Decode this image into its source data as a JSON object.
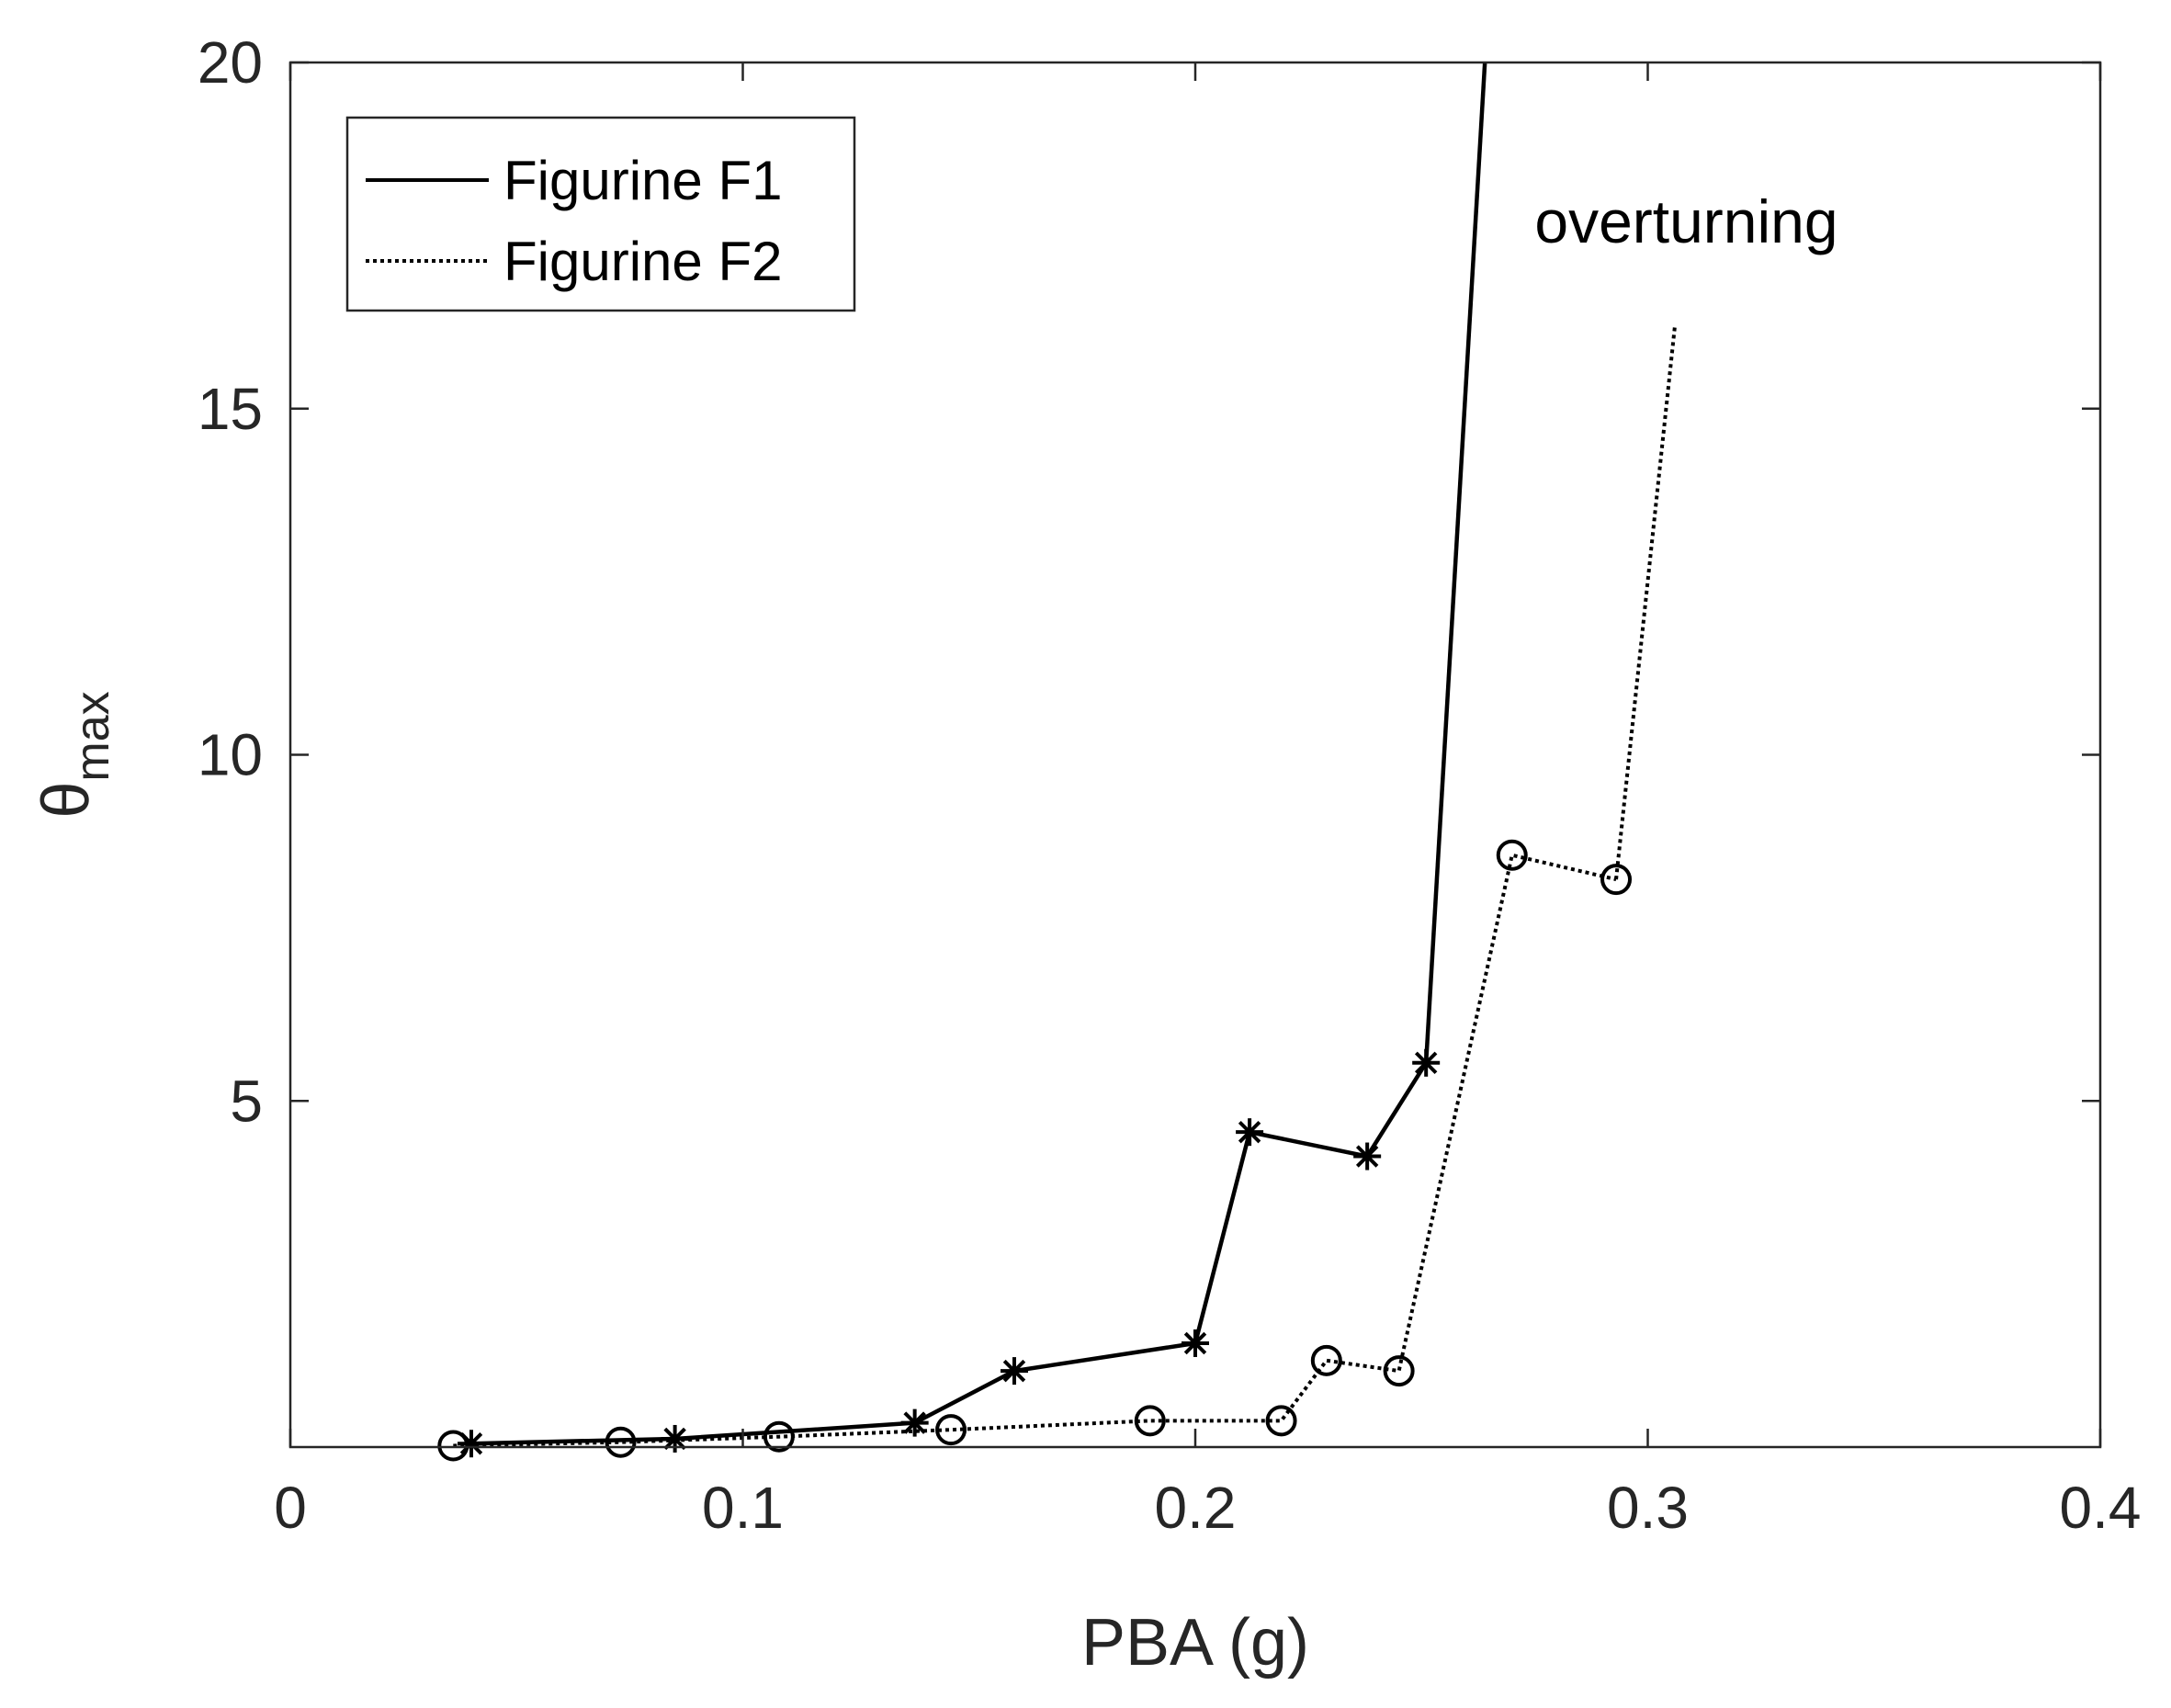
{
  "chart_data": {
    "type": "line",
    "title": "",
    "xlabel": "PBA (g)",
    "ylabel": {
      "main": "θ",
      "sub": "max"
    },
    "xlim": [
      0,
      0.4
    ],
    "ylim": [
      0,
      20
    ],
    "x_ticks": [
      0,
      0.1,
      0.2,
      0.3,
      0.4
    ],
    "x_tick_labels": [
      "0",
      "0.1",
      "0.2",
      "0.3",
      "0.4"
    ],
    "y_ticks": [
      5,
      10,
      15,
      20
    ],
    "y_tick_labels": [
      "5",
      "10",
      "15",
      "20"
    ],
    "grid": false,
    "legend_position": "top-left",
    "series": [
      {
        "name": "Figurine F1",
        "line_style": "solid",
        "marker": "asterisk",
        "points": [
          {
            "x": 0.04,
            "y": 0.05
          },
          {
            "x": 0.085,
            "y": 0.12
          },
          {
            "x": 0.138,
            "y": 0.35
          },
          {
            "x": 0.16,
            "y": 1.1
          },
          {
            "x": 0.2,
            "y": 1.5
          },
          {
            "x": 0.212,
            "y": 4.55
          },
          {
            "x": 0.238,
            "y": 4.2
          },
          {
            "x": 0.251,
            "y": 5.55
          }
        ],
        "extension": [
          {
            "x": 0.251,
            "y": 5.55
          },
          {
            "x": 0.264,
            "y": 20.0
          }
        ]
      },
      {
        "name": "Figurine F2",
        "line_style": "dotted",
        "marker": "circle",
        "points": [
          {
            "x": 0.036,
            "y": 0.02
          },
          {
            "x": 0.073,
            "y": 0.07
          },
          {
            "x": 0.108,
            "y": 0.15
          },
          {
            "x": 0.146,
            "y": 0.25
          },
          {
            "x": 0.19,
            "y": 0.38
          },
          {
            "x": 0.219,
            "y": 0.38
          },
          {
            "x": 0.229,
            "y": 1.25
          },
          {
            "x": 0.245,
            "y": 1.1
          },
          {
            "x": 0.27,
            "y": 8.55
          },
          {
            "x": 0.293,
            "y": 8.2
          }
        ],
        "extension": [
          {
            "x": 0.293,
            "y": 8.2
          },
          {
            "x": 0.306,
            "y": 16.2
          }
        ]
      }
    ],
    "annotations": [
      {
        "text": "overturning",
        "x": 0.275,
        "y": 17.4
      }
    ]
  }
}
